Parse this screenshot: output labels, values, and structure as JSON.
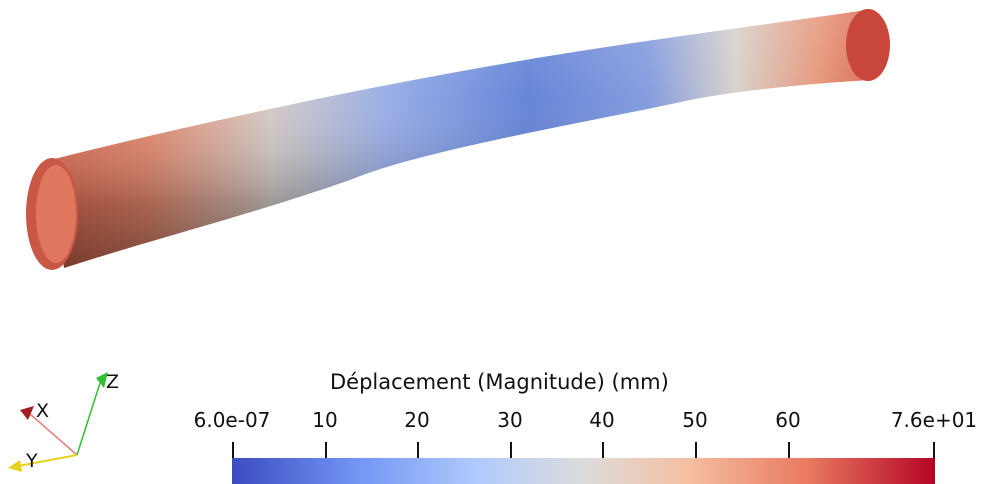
{
  "colorbar": {
    "title": "Déplacement (Magnitude) (mm)",
    "min_label": "6.0e-07",
    "max_label": "7.6e+01",
    "ticks": [
      "10",
      "20",
      "30",
      "40",
      "50",
      "60"
    ],
    "colormap": "cool-to-warm",
    "colors": {
      "low": "#3b4cc0",
      "mid": "#dddcdc",
      "high": "#b40426"
    }
  },
  "orientation_axes": {
    "x_label": "X",
    "y_label": "Y",
    "z_label": "Z",
    "colors": {
      "x": "#c0272d",
      "y": "#e6d21c",
      "z": "#2fbf2f"
    }
  },
  "scene": {
    "object": "bent-pipe",
    "scalar": "displacement-magnitude"
  }
}
